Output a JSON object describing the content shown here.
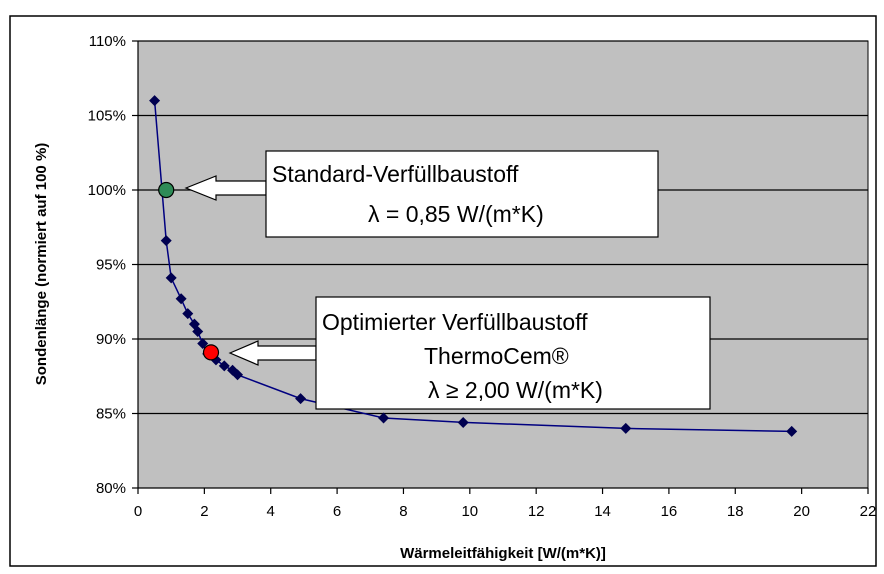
{
  "chart_data": {
    "type": "scatter",
    "xlabel": "Wärmeleitfähigkeit [W/(m*K)]",
    "ylabel": "Sondenlänge (normiert auf 100 %)",
    "xlim": [
      0,
      22
    ],
    "ylim": [
      80,
      110
    ],
    "x_ticks": [
      0,
      2,
      4,
      6,
      8,
      10,
      12,
      14,
      16,
      18,
      20,
      22
    ],
    "y_ticks": [
      80,
      85,
      90,
      95,
      100,
      105,
      110
    ],
    "y_tick_labels": [
      "80%",
      "85%",
      "90%",
      "95%",
      "100%",
      "105%",
      "110%"
    ],
    "grid": "horizontal",
    "series": [
      {
        "color": "#000080",
        "marker": "diamond",
        "x": [
          0.5,
          0.85,
          1.0,
          1.3,
          1.5,
          1.7,
          1.8,
          1.95,
          2.1,
          2.35,
          2.6,
          2.85,
          3.0,
          4.9,
          7.4,
          9.8,
          14.7,
          19.7
        ],
        "y": [
          106.0,
          96.6,
          94.1,
          92.7,
          91.7,
          91.0,
          90.5,
          89.7,
          89.0,
          88.6,
          88.2,
          87.9,
          87.6,
          86.0,
          84.7,
          84.4,
          84.0,
          83.8
        ]
      }
    ],
    "highlights": [
      {
        "x": 0.85,
        "y": 100.0,
        "color": "#2e8b57"
      },
      {
        "x": 2.2,
        "y": 89.1,
        "color": "#ff0000"
      }
    ],
    "annotations": [
      {
        "lines": [
          "Standard-Verfüllbaustoff",
          "λ = 0,85 W/(m*K)"
        ]
      },
      {
        "lines": [
          "Optimierter Verfüllbaustoff",
          "ThermoCem®",
          "λ ≥ 2,00 W/(m*K)"
        ]
      }
    ]
  }
}
